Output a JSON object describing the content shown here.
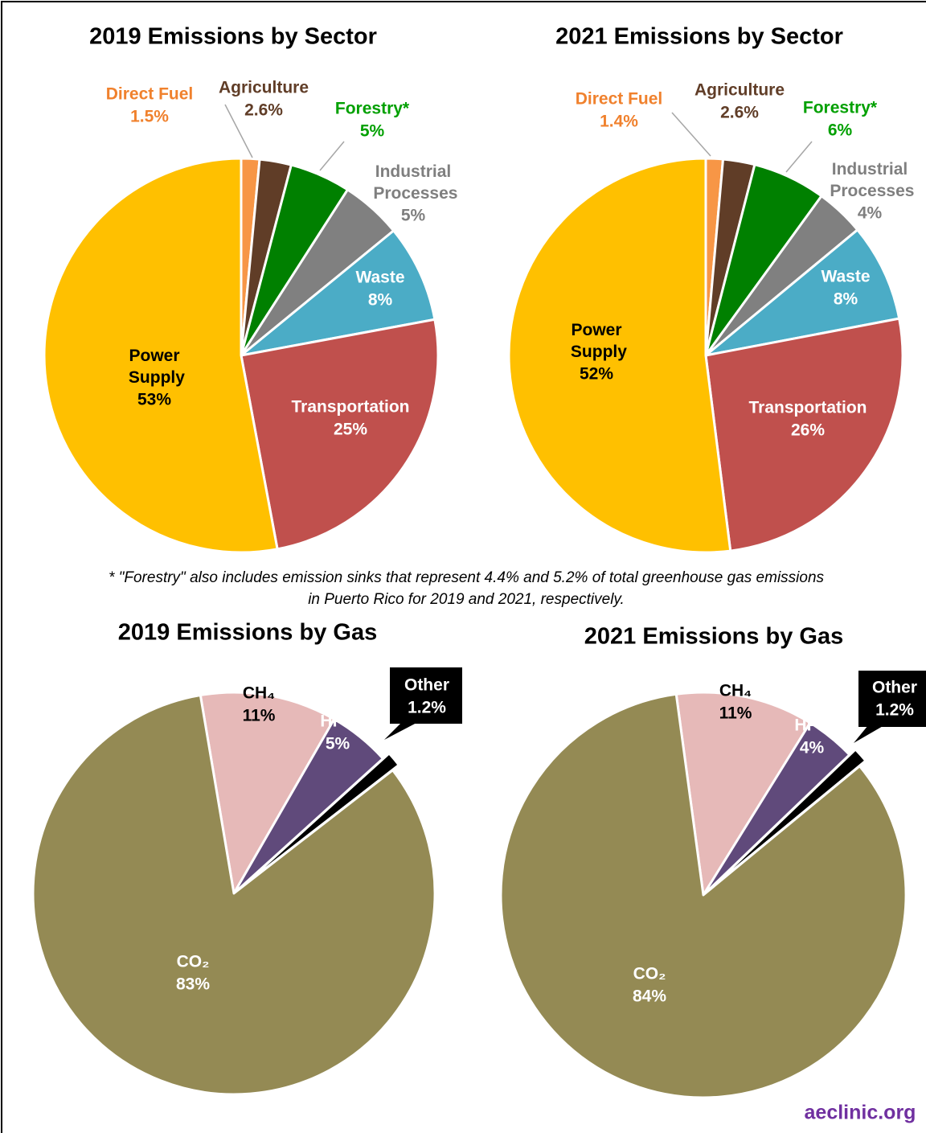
{
  "chart_data": [
    {
      "type": "pie",
      "title": "2019 Emissions by Sector",
      "categories": [
        "Direct Fuel",
        "Agriculture",
        "Forestry*",
        "Industrial Processes",
        "Waste",
        "Transportation",
        "Power Supply"
      ],
      "values": [
        1.5,
        2.6,
        5,
        5,
        8,
        25,
        53
      ],
      "value_labels": [
        "1.5%",
        "2.6%",
        "5%",
        "5%",
        "8%",
        "25%",
        "53%"
      ],
      "colors": [
        "#f79646",
        "#603d27",
        "#008000",
        "#808080",
        "#4bacc6",
        "#c0504d",
        "#ffc000"
      ]
    },
    {
      "type": "pie",
      "title": "2021 Emissions by Sector",
      "categories": [
        "Direct Fuel",
        "Agriculture",
        "Forestry*",
        "Industrial Processes",
        "Waste",
        "Transportation",
        "Power Supply"
      ],
      "values": [
        1.4,
        2.6,
        6,
        4,
        8,
        26,
        52
      ],
      "value_labels": [
        "1.4%",
        "2.6%",
        "6%",
        "4%",
        "8%",
        "26%",
        "52%"
      ],
      "colors": [
        "#f79646",
        "#603d27",
        "#008000",
        "#808080",
        "#4bacc6",
        "#c0504d",
        "#ffc000"
      ]
    },
    {
      "type": "pie",
      "title": "2019 Emissions by Gas",
      "categories": [
        "CH₄",
        "HFC",
        "Other",
        "CO₂"
      ],
      "values": [
        11,
        5,
        1.2,
        83
      ],
      "value_labels": [
        "11%",
        "5%",
        "1.2%",
        "83%"
      ],
      "colors": [
        "#e6b9b8",
        "#604a7b",
        "#000000",
        "#948a54"
      ]
    },
    {
      "type": "pie",
      "title": "2021 Emissions by Gas",
      "categories": [
        "CH₄",
        "HFC",
        "Other",
        "CO₂"
      ],
      "values": [
        11,
        4,
        1.2,
        84
      ],
      "value_labels": [
        "11%",
        "4%",
        "1.2%",
        "84%"
      ],
      "colors": [
        "#e6b9b8",
        "#604a7b",
        "#000000",
        "#948a54"
      ]
    }
  ],
  "footnote": [
    "* \"Forestry\" also includes emission sinks that represent 4.4% and 5.2% of total greenhouse gas emissions",
    "in Puerto Rico for 2019 and 2021, respectively."
  ],
  "source": "aeclinic.org"
}
